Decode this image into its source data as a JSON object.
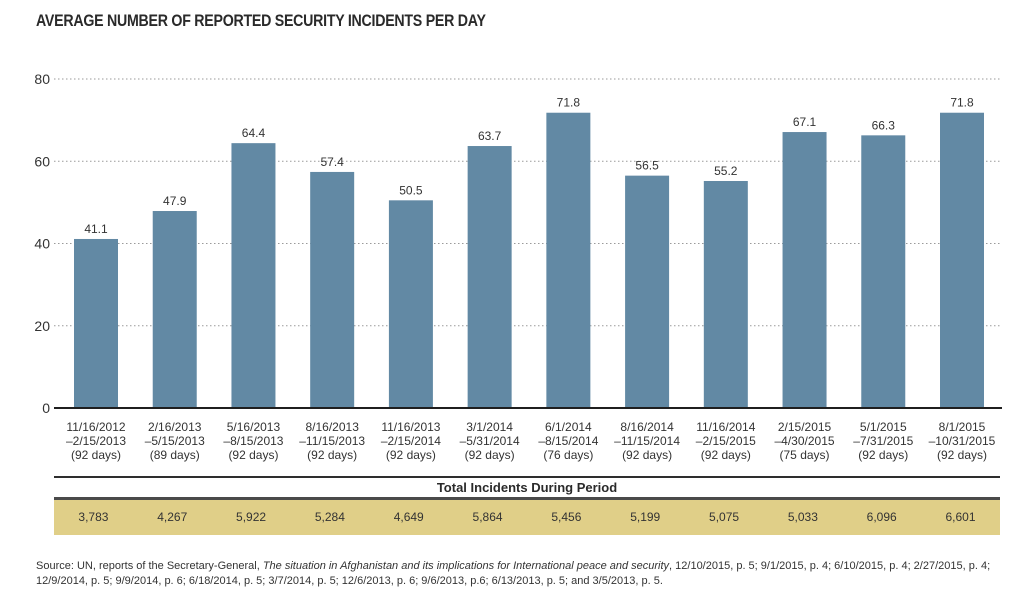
{
  "chart_data": {
    "type": "bar",
    "title": "AVERAGE NUMBER OF REPORTED SECURITY INCIDENTS PER DAY",
    "xlabel": "",
    "ylabel": "",
    "ylim": [
      0,
      80
    ],
    "yticks": [
      0,
      20,
      40,
      60,
      80
    ],
    "grid": true,
    "grid_style": "dotted",
    "bar_color": "#6289a4",
    "categories": [
      [
        "11/16/2012",
        "–2/15/2013",
        "(92 days)"
      ],
      [
        "2/16/2013",
        "–5/15/2013",
        "(89 days)"
      ],
      [
        "5/16/2013",
        "–8/15/2013",
        "(92 days)"
      ],
      [
        "8/16/2013",
        "–11/15/2013",
        "(92 days)"
      ],
      [
        "11/16/2013",
        "–2/15/2014",
        "(92 days)"
      ],
      [
        "3/1/2014",
        "–5/31/2014",
        "(92 days)"
      ],
      [
        "6/1/2014",
        "–8/15/2014",
        "(76 days)"
      ],
      [
        "8/16/2014",
        "–11/15/2014",
        "(92 days)"
      ],
      [
        "11/16/2014",
        "–2/15/2015",
        "(92 days)"
      ],
      [
        "2/15/2015",
        "–4/30/2015",
        "(75 days)"
      ],
      [
        "5/1/2015",
        "–7/31/2015",
        "(92 days)"
      ],
      [
        "8/1/2015",
        "–10/31/2015",
        "(92 days)"
      ]
    ],
    "values": [
      41.1,
      47.9,
      64.4,
      57.4,
      50.5,
      63.7,
      71.8,
      56.5,
      55.2,
      67.1,
      66.3,
      71.8
    ],
    "data_labels": [
      "41.1",
      "47.9",
      "64.4",
      "57.4",
      "50.5",
      "63.7",
      "71.8",
      "56.5",
      "55.2",
      "67.1",
      "66.3",
      "71.8"
    ],
    "table": {
      "header": "Total Incidents During Period",
      "values": [
        "3,783",
        "4,267",
        "5,922",
        "5,284",
        "4,649",
        "5,864",
        "5,456",
        "5,199",
        "5,075",
        "5,033",
        "6,096",
        "6,601"
      ],
      "band_color": "#e0cf88"
    }
  },
  "source": {
    "prefix": "Source: UN, reports of the Secretary-General, ",
    "italic": "The situation in Afghanistan and its implications for International peace and security",
    "suffix": ", 12/10/2015, p. 5; 9/1/2015, p. 4; 6/10/2015, p. 4; 2/27/2015, p. 4; 12/9/2014, p. 5; 9/9/2014, p. 6; 6/18/2014, p. 5; 3/7/2014, p. 5; 12/6/2013, p. 6; 9/6/2013, p.6; 6/13/2013, p. 5; and 3/5/2013, p. 5."
  }
}
